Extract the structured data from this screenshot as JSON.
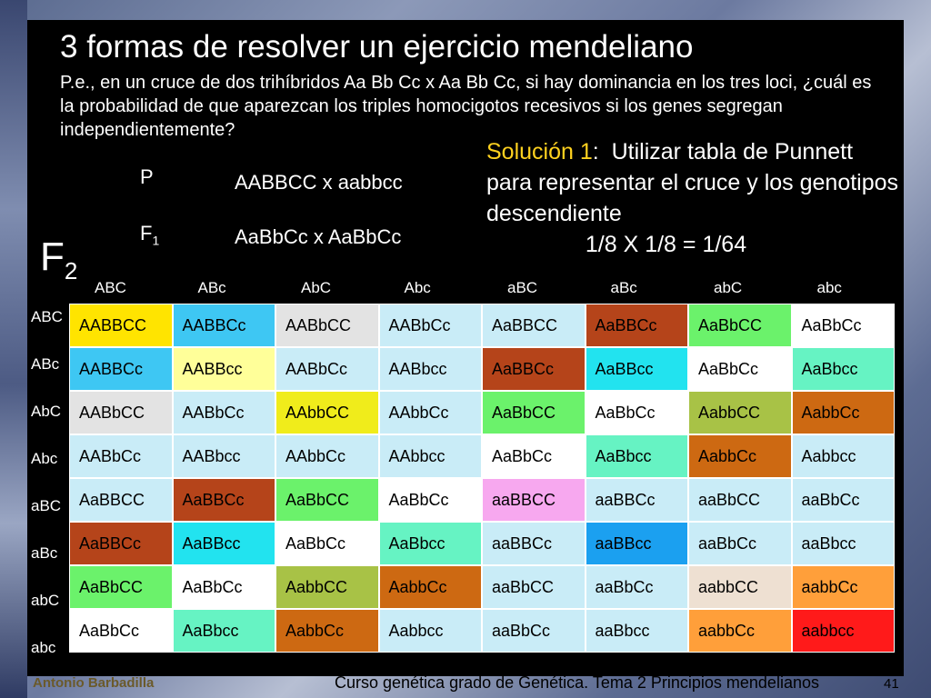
{
  "title": "3 formas de resolver un ejercicio mendeliano",
  "question": "P.e., en un cruce de dos trihíbridos Aa Bb Cc x Aa Bb Cc, si hay dominancia en los tres loci, ¿cuál es la probabilidad de que aparezcan los triples homocigotos recesivos si los genes segregan independientemente?",
  "cross": {
    "p_label": "P",
    "p_cross": "AABBCC x aabbcc",
    "f1_label": "F",
    "f1_sub": "1",
    "f1_cross": "AaBbCc x AaBbCc"
  },
  "solution": {
    "label": "Solución 1",
    "colon": ":",
    "text": "Utilizar tabla de Punnett para representar el cruce y los genotipos descendiente",
    "formula": "1/8 X 1/8 = 1/64"
  },
  "f2": {
    "label": "F",
    "sub": "2"
  },
  "gametes": [
    "ABC",
    "ABc",
    "AbC",
    "Abc",
    "aBC",
    "aBc",
    "abC",
    "abc"
  ],
  "punnett": [
    [
      {
        "g": "AABBCC",
        "c": "#ffe400"
      },
      {
        "g": "AABBCc",
        "c": "#3ec7f3"
      },
      {
        "g": "AABbCC",
        "c": "#e3e3e3"
      },
      {
        "g": "AABbCc",
        "c": "#c9ecf7"
      },
      {
        "g": "AaBBCC",
        "c": "#c9ecf7"
      },
      {
        "g": "AaBBCc",
        "c": "#b5441a"
      },
      {
        "g": "AaBbCC",
        "c": "#6bf26b"
      },
      {
        "g": "AaBbCc",
        "c": "#ffffff"
      }
    ],
    [
      {
        "g": "AABBCc",
        "c": "#3ec7f3"
      },
      {
        "g": "AABBcc",
        "c": "#ffff99"
      },
      {
        "g": "AABbCc",
        "c": "#c9ecf7"
      },
      {
        "g": "AABbcc",
        "c": "#c9ecf7"
      },
      {
        "g": "AaBBCc",
        "c": "#b5441a"
      },
      {
        "g": "AaBBcc",
        "c": "#22e3ef"
      },
      {
        "g": "AaBbCc",
        "c": "#ffffff"
      },
      {
        "g": "AaBbcc",
        "c": "#66f3c3"
      }
    ],
    [
      {
        "g": "AABbCC",
        "c": "#e3e3e3"
      },
      {
        "g": "AABbCc",
        "c": "#c9ecf7"
      },
      {
        "g": "AAbbCC",
        "c": "#f0ec1b"
      },
      {
        "g": "AAbbCc",
        "c": "#c9ecf7"
      },
      {
        "g": "AaBbCC",
        "c": "#6bf26b"
      },
      {
        "g": "AaBbCc",
        "c": "#ffffff"
      },
      {
        "g": "AabbCC",
        "c": "#a8c246"
      },
      {
        "g": "AabbCc",
        "c": "#cd6912"
      }
    ],
    [
      {
        "g": "AABbCc",
        "c": "#c9ecf7"
      },
      {
        "g": "AABbcc",
        "c": "#c9ecf7"
      },
      {
        "g": "AAbbCc",
        "c": "#c9ecf7"
      },
      {
        "g": "AAbbcc",
        "c": "#c9ecf7"
      },
      {
        "g": "AaBbCc",
        "c": "#ffffff"
      },
      {
        "g": "AaBbcc",
        "c": "#66f3c3"
      },
      {
        "g": "AabbCc",
        "c": "#cd6912"
      },
      {
        "g": "Aabbcc",
        "c": "#c9ecf7"
      }
    ],
    [
      {
        "g": "AaBBCC",
        "c": "#c9ecf7"
      },
      {
        "g": "AaBBCc",
        "c": "#b5441a"
      },
      {
        "g": "AaBbCC",
        "c": "#6bf26b"
      },
      {
        "g": "AaBbCc",
        "c": "#ffffff"
      },
      {
        "g": "aaBBCC",
        "c": "#f7a8ef"
      },
      {
        "g": "aaBBCc",
        "c": "#c9ecf7"
      },
      {
        "g": "aaBbCC",
        "c": "#c9ecf7"
      },
      {
        "g": "aaBbCc",
        "c": "#c9ecf7"
      }
    ],
    [
      {
        "g": "AaBBCc",
        "c": "#b5441a"
      },
      {
        "g": "AaBBcc",
        "c": "#22e3ef"
      },
      {
        "g": "AaBbCc",
        "c": "#ffffff"
      },
      {
        "g": "AaBbcc",
        "c": "#66f3c3"
      },
      {
        "g": "aaBBCc",
        "c": "#c9ecf7"
      },
      {
        "g": "aaBBcc",
        "c": "#1ba0f0"
      },
      {
        "g": "aaBbCc",
        "c": "#c9ecf7"
      },
      {
        "g": "aaBbcc",
        "c": "#c9ecf7"
      }
    ],
    [
      {
        "g": "AaBbCC",
        "c": "#6bf26b"
      },
      {
        "g": "AaBbCc",
        "c": "#ffffff"
      },
      {
        "g": "AabbCC",
        "c": "#a8c246"
      },
      {
        "g": "AabbCc",
        "c": "#cd6912"
      },
      {
        "g": "aaBbCC",
        "c": "#c9ecf7"
      },
      {
        "g": "aaBbCc",
        "c": "#c9ecf7"
      },
      {
        "g": "aabbCC",
        "c": "#eee0d2"
      },
      {
        "g": "aabbCc",
        "c": "#ff9f3a"
      }
    ],
    [
      {
        "g": "AaBbCc",
        "c": "#ffffff"
      },
      {
        "g": "AaBbcc",
        "c": "#66f3c3"
      },
      {
        "g": "AabbCc",
        "c": "#cd6912"
      },
      {
        "g": "Aabbcc",
        "c": "#c9ecf7"
      },
      {
        "g": "aaBbCc",
        "c": "#c9ecf7"
      },
      {
        "g": "aaBbcc",
        "c": "#c9ecf7"
      },
      {
        "g": "aabbCc",
        "c": "#ff9f3a"
      },
      {
        "g": "aabbcc",
        "c": "#ff1a1a"
      }
    ]
  ],
  "footer": {
    "author": "Antonio Barbadilla",
    "course": "Curso genética grado de Genética. Tema 2 Principios mendelianos",
    "page": "41"
  }
}
